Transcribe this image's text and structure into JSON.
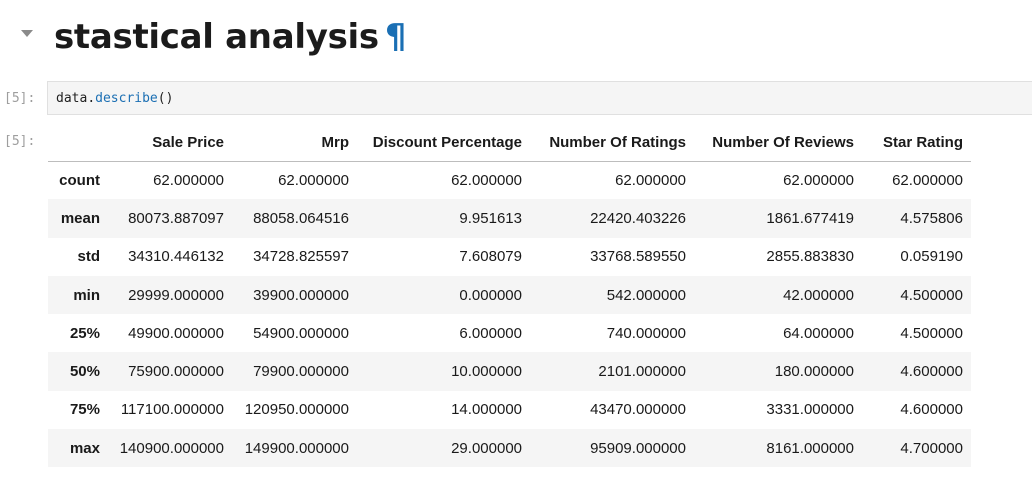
{
  "heading": {
    "title": "stastical analysis",
    "anchor": "¶"
  },
  "input_cell": {
    "prompt": "[5]:",
    "code_object": "data",
    "code_dot": ".",
    "code_method": "describe",
    "code_parens": "()"
  },
  "output_cell": {
    "prompt": "[5]:"
  },
  "table": {
    "index_header": "",
    "columns": [
      "Sale Price",
      "Mrp",
      "Discount Percentage",
      "Number Of Ratings",
      "Number Of Reviews",
      "Star Rating"
    ],
    "rows": [
      {
        "index": "count",
        "values": [
          "62.000000",
          "62.000000",
          "62.000000",
          "62.000000",
          "62.000000",
          "62.000000"
        ]
      },
      {
        "index": "mean",
        "values": [
          "80073.887097",
          "88058.064516",
          "9.951613",
          "22420.403226",
          "1861.677419",
          "4.575806"
        ]
      },
      {
        "index": "std",
        "values": [
          "34310.446132",
          "34728.825597",
          "7.608079",
          "33768.589550",
          "2855.883830",
          "0.059190"
        ]
      },
      {
        "index": "min",
        "values": [
          "29999.000000",
          "39900.000000",
          "0.000000",
          "542.000000",
          "42.000000",
          "4.500000"
        ]
      },
      {
        "index": "25%",
        "values": [
          "49900.000000",
          "54900.000000",
          "6.000000",
          "740.000000",
          "64.000000",
          "4.500000"
        ]
      },
      {
        "index": "50%",
        "values": [
          "75900.000000",
          "79900.000000",
          "10.000000",
          "2101.000000",
          "180.000000",
          "4.600000"
        ]
      },
      {
        "index": "75%",
        "values": [
          "117100.000000",
          "120950.000000",
          "14.000000",
          "43470.000000",
          "3331.000000",
          "4.600000"
        ]
      },
      {
        "index": "max",
        "values": [
          "140900.000000",
          "149900.000000",
          "29.000000",
          "95909.000000",
          "8161.000000",
          "4.700000"
        ]
      }
    ]
  },
  "colors": {
    "anchor": "#1a6fb4",
    "code_method": "#1b6fb3",
    "stripe": "#f5f5f5",
    "prompt": "#9e9e9e"
  }
}
